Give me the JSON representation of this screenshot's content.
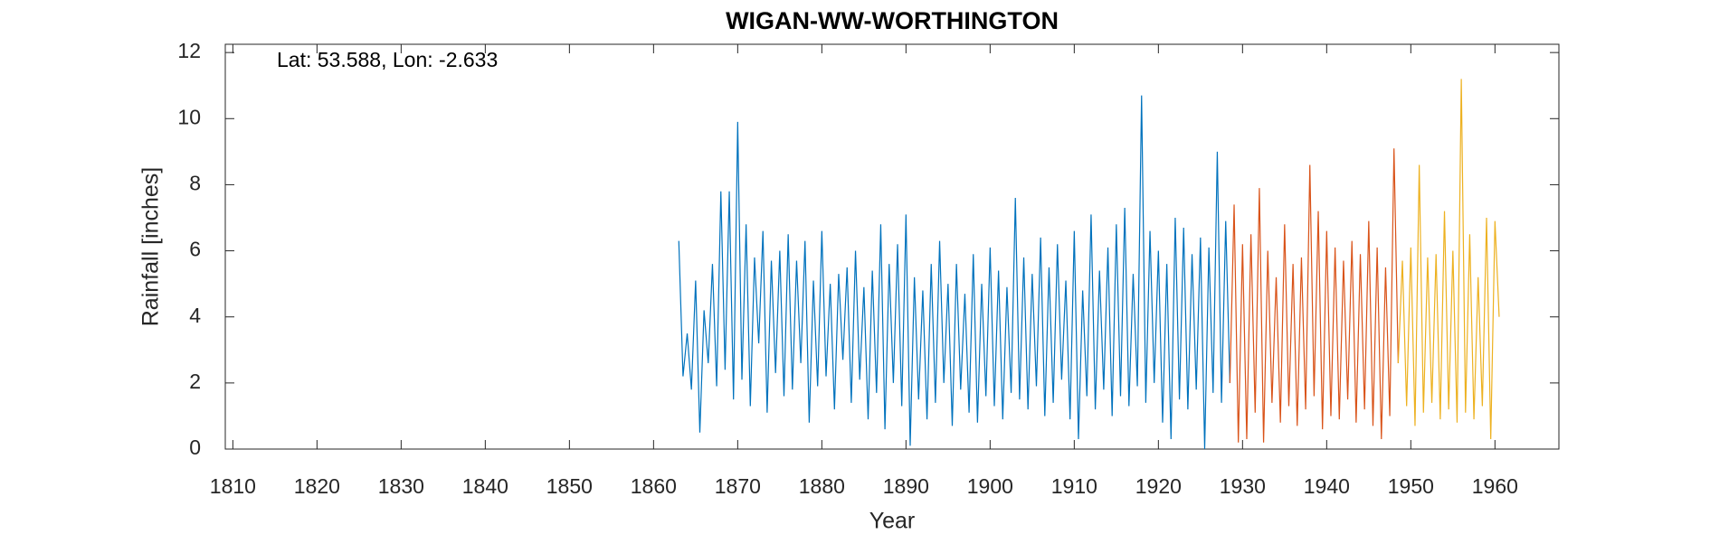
{
  "chart_data": {
    "type": "line",
    "title": "WIGAN-WW-WORTHINGTON",
    "annotation": "Lat: 53.588, Lon: -2.633",
    "xlabel": "Year",
    "ylabel": "Rainfall [inches]",
    "xlim": [
      1809.1,
      1967.6
    ],
    "ylim": [
      0,
      12.25
    ],
    "xticks": [
      1810,
      1820,
      1830,
      1840,
      1850,
      1860,
      1870,
      1880,
      1890,
      1900,
      1910,
      1920,
      1930,
      1940,
      1950,
      1960
    ],
    "yticks": [
      0,
      2,
      4,
      6,
      8,
      10,
      12
    ],
    "series": [
      {
        "color": "#0072bd",
        "x": [
          1863.0,
          1863.5,
          1864.0,
          1864.5,
          1865.0,
          1865.5,
          1866.0,
          1866.5,
          1867.0,
          1867.5,
          1868.0,
          1868.5,
          1869.0,
          1869.5,
          1870.0,
          1870.5,
          1871.0,
          1871.5,
          1872.0,
          1872.5,
          1873.0,
          1873.5,
          1874.0,
          1874.5,
          1875.0,
          1875.5,
          1876.0,
          1876.5,
          1877.0,
          1877.5,
          1878.0,
          1878.5,
          1879.0,
          1879.5,
          1880.0,
          1880.5,
          1881.0,
          1881.5,
          1882.0,
          1882.5,
          1883.0,
          1883.5,
          1884.0,
          1884.5,
          1885.0,
          1885.5,
          1886.0,
          1886.5,
          1887.0,
          1887.5,
          1888.0,
          1888.5,
          1889.0,
          1889.5,
          1890.0,
          1890.5,
          1891.0,
          1891.5,
          1892.0,
          1892.5,
          1893.0,
          1893.5,
          1894.0,
          1894.5,
          1895.0,
          1895.5,
          1896.0,
          1896.5,
          1897.0,
          1897.5,
          1898.0,
          1898.5,
          1899.0,
          1899.5,
          1900.0,
          1900.5,
          1901.0,
          1901.5,
          1902.0,
          1902.5,
          1903.0,
          1903.5,
          1904.0,
          1904.5,
          1905.0,
          1905.5,
          1906.0,
          1906.5,
          1907.0,
          1907.5,
          1908.0,
          1908.5,
          1909.0,
          1909.5,
          1910.0,
          1910.5,
          1911.0,
          1911.5,
          1912.0,
          1912.5,
          1913.0,
          1913.5,
          1914.0,
          1914.5,
          1915.0,
          1915.5,
          1916.0,
          1916.5,
          1917.0,
          1917.5,
          1918.0,
          1918.5,
          1919.0,
          1919.5,
          1920.0,
          1920.5,
          1921.0,
          1921.5,
          1922.0,
          1922.5,
          1923.0,
          1923.5,
          1924.0,
          1924.5,
          1925.0,
          1925.5,
          1926.0,
          1926.5,
          1927.0,
          1927.5,
          1928.0,
          1928.5
        ],
        "values": [
          6.3,
          2.2,
          3.5,
          1.8,
          5.1,
          0.5,
          4.2,
          2.6,
          5.6,
          1.9,
          7.8,
          2.4,
          7.8,
          1.5,
          9.9,
          2.1,
          6.8,
          1.3,
          5.8,
          3.2,
          6.6,
          1.1,
          5.7,
          2.3,
          6.0,
          1.6,
          6.5,
          1.8,
          5.7,
          2.6,
          6.3,
          0.8,
          5.1,
          1.9,
          6.6,
          2.2,
          5.0,
          1.2,
          5.3,
          2.7,
          5.5,
          1.4,
          6.0,
          2.1,
          4.9,
          0.9,
          5.4,
          1.7,
          6.8,
          0.6,
          5.6,
          2.0,
          6.2,
          1.3,
          7.1,
          0.1,
          5.2,
          1.5,
          4.8,
          0.9,
          5.6,
          1.4,
          6.3,
          2.0,
          5.0,
          0.7,
          5.6,
          1.8,
          4.7,
          1.1,
          5.9,
          0.8,
          5.0,
          1.6,
          6.1,
          1.3,
          5.4,
          0.9,
          4.9,
          1.7,
          7.6,
          1.5,
          5.8,
          1.2,
          5.3,
          1.9,
          6.4,
          1.0,
          5.5,
          1.4,
          6.2,
          2.1,
          5.1,
          0.9,
          6.6,
          0.3,
          4.8,
          1.6,
          7.1,
          1.2,
          5.4,
          1.8,
          6.1,
          1.0,
          6.8,
          1.6,
          7.3,
          1.3,
          5.3,
          1.9,
          10.7,
          1.4,
          6.6,
          2.0,
          6.0,
          0.8,
          5.6,
          0.3,
          7.0,
          1.5,
          6.7,
          1.2,
          5.9,
          1.8,
          6.4,
          0.0,
          6.1,
          1.7,
          9.0,
          1.4,
          6.9,
          2.0
        ]
      },
      {
        "color": "#d95319",
        "x": [
          1928.5,
          1929.0,
          1929.5,
          1930.0,
          1930.5,
          1931.0,
          1931.5,
          1932.0,
          1932.5,
          1933.0,
          1933.5,
          1934.0,
          1934.5,
          1935.0,
          1935.5,
          1936.0,
          1936.5,
          1937.0,
          1937.5,
          1938.0,
          1938.5,
          1939.0,
          1939.5,
          1940.0,
          1940.5,
          1941.0,
          1941.5,
          1942.0,
          1942.5,
          1943.0,
          1943.5,
          1944.0,
          1944.5,
          1945.0,
          1945.5,
          1946.0,
          1946.5,
          1947.0,
          1947.5,
          1948.0,
          1948.5
        ],
        "values": [
          2.0,
          7.4,
          0.2,
          6.2,
          0.3,
          6.5,
          1.1,
          7.9,
          0.2,
          6.0,
          1.4,
          5.2,
          0.8,
          6.8,
          1.3,
          5.6,
          0.7,
          5.8,
          1.2,
          8.6,
          1.6,
          7.2,
          0.6,
          6.6,
          1.0,
          6.1,
          0.9,
          5.7,
          1.5,
          6.3,
          0.8,
          5.9,
          1.2,
          6.9,
          0.7,
          6.1,
          0.3,
          5.5,
          1.0,
          9.1,
          2.6
        ]
      },
      {
        "color": "#edb120",
        "x": [
          1948.5,
          1949.0,
          1949.5,
          1950.0,
          1950.5,
          1951.0,
          1951.5,
          1952.0,
          1952.5,
          1953.0,
          1953.5,
          1954.0,
          1954.5,
          1955.0,
          1955.5,
          1956.0,
          1956.5,
          1957.0,
          1957.5,
          1958.0,
          1958.5,
          1959.0,
          1959.5,
          1960.0,
          1960.5
        ],
        "values": [
          2.6,
          5.7,
          1.3,
          6.1,
          0.7,
          8.6,
          1.1,
          5.8,
          1.4,
          5.9,
          0.9,
          7.2,
          1.2,
          6.0,
          0.8,
          11.2,
          1.1,
          6.5,
          0.9,
          5.2,
          1.3,
          7.0,
          0.3,
          6.9,
          4.0
        ]
      }
    ]
  }
}
